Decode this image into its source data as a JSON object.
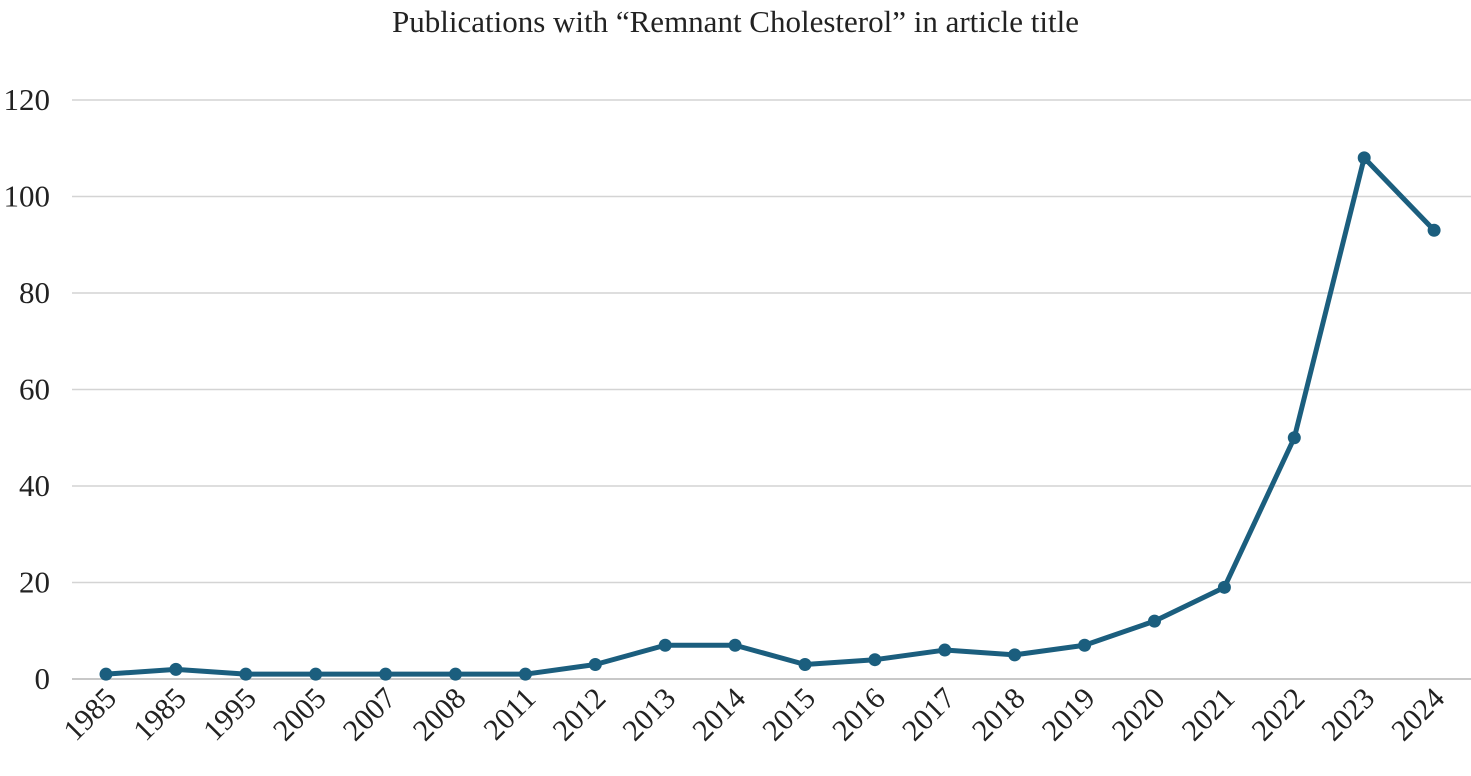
{
  "chart_data": {
    "type": "line",
    "title": "Publications with “Remnant Cholesterol” in article title",
    "xlabel": "",
    "ylabel": "",
    "categories": [
      "1985",
      "1985",
      "1995",
      "2005",
      "2007",
      "2008",
      "2011",
      "2012",
      "2013",
      "2014",
      "2015",
      "2016",
      "2017",
      "2018",
      "2019",
      "2020",
      "2021",
      "2022",
      "2023",
      "2024"
    ],
    "series": [
      {
        "values": [
          1,
          2,
          1,
          1,
          1,
          1,
          1,
          3,
          7,
          7,
          3,
          4,
          6,
          5,
          7,
          12,
          19,
          50,
          108,
          93
        ],
        "color": "#1b5e7e"
      }
    ],
    "ylim": [
      0,
      120
    ],
    "yticks": [
      0,
      20,
      40,
      60,
      80,
      100,
      120
    ],
    "grid": true,
    "legend": "none",
    "colors": {
      "line": "#1b5e7e",
      "grid": "#d4d4d4",
      "axis": "#c8c8c8",
      "text": "#222222"
    }
  }
}
